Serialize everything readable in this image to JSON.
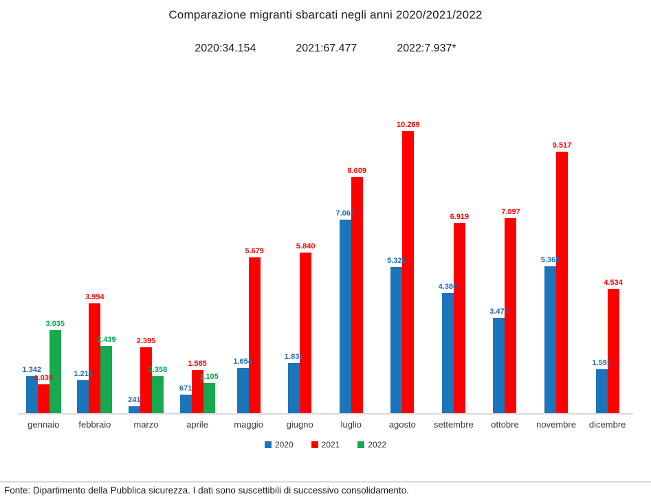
{
  "header": {
    "title": "Comparazione migranti sbarcati negli anni 2020/2021/2022",
    "totals": [
      "2020:34.154",
      "2021:67.477",
      "2022:7.937*"
    ]
  },
  "chart_data": {
    "type": "bar",
    "title": "Comparazione migranti sbarcati negli anni 2020/2021/2022",
    "categories": [
      "gennaio",
      "febbraio",
      "marzo",
      "aprile",
      "maggio",
      "giugno",
      "luglio",
      "agosto",
      "settembre",
      "ottobre",
      "novembre",
      "dicembre"
    ],
    "series": [
      {
        "name": "2020",
        "total_label": "2020:34.154",
        "bar_color": "#1b75bb",
        "label_color": "#1c69b8",
        "values": [
          1342,
          1211,
          241,
          671,
          1654,
          1831,
          7062,
          5328,
          4386,
          3477,
          5360,
          1591
        ],
        "labels": [
          "1.342",
          "1.211",
          "241",
          "671",
          "1.654",
          "1.831",
          "7.062",
          "5.328",
          "4.386",
          "3.477",
          "5.360",
          "1.591"
        ]
      },
      {
        "name": "2021",
        "total_label": "2021:67.477",
        "bar_color": "#fd0000",
        "label_color": "#ff0000",
        "values": [
          1039,
          3994,
          2395,
          1585,
          5679,
          5840,
          8609,
          10269,
          6919,
          7097,
          9517,
          4534
        ],
        "labels": [
          "1.039",
          "3.994",
          "2.395",
          "1.585",
          "5.679",
          "5.840",
          "8.609",
          "10.269",
          "6.919",
          "7.097",
          "9.517",
          "4.534"
        ]
      },
      {
        "name": "2022",
        "total_label": "2022:7.937*",
        "bar_color": "#17a94f",
        "label_color": "#00a44f",
        "values": [
          3035,
          2439,
          1358,
          1105,
          null,
          null,
          null,
          null,
          null,
          null,
          null,
          null
        ],
        "labels": [
          "3.035",
          "2.439",
          "1.358",
          "1.105",
          null,
          null,
          null,
          null,
          null,
          null,
          null,
          null
        ]
      }
    ],
    "ylim": [
      0,
      11000
    ],
    "xlabel": "",
    "ylabel": "",
    "grid": false,
    "axis_line_color": "#d9d9d9",
    "legend_position": "bottom",
    "value_labels": "outside-end"
  },
  "footer": {
    "source": "Fonte: Dipartimento della Pubblica sicurezza. I dati sono suscettibili di successivo consolidamento."
  }
}
